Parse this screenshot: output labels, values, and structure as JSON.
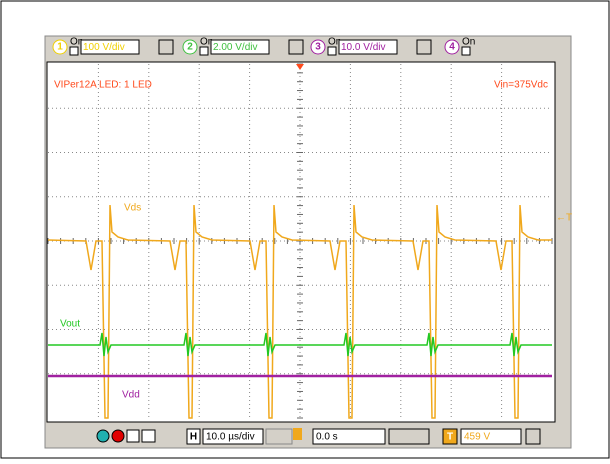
{
  "toolbar": {
    "channels": [
      {
        "number": "1",
        "state": "On",
        "scale": "100 V/div"
      },
      {
        "number": "2",
        "state": "On",
        "scale": "2.00 V/div"
      },
      {
        "number": "3",
        "state": "On",
        "scale": "10.0 V/div"
      },
      {
        "number": "4",
        "state": "On"
      }
    ]
  },
  "screen": {
    "title": "VIPer12A LED: 1 LED",
    "input": "Vin=375Vdc",
    "traces": [
      "Vds",
      "Vout",
      "Vdd"
    ],
    "trigger_marker": "←T"
  },
  "footer": {
    "horizontal_label": "H",
    "timebase": "10.0 µs/div",
    "position": "0.0 s",
    "trigger_label": "T",
    "trigger_level": "459 V"
  }
}
